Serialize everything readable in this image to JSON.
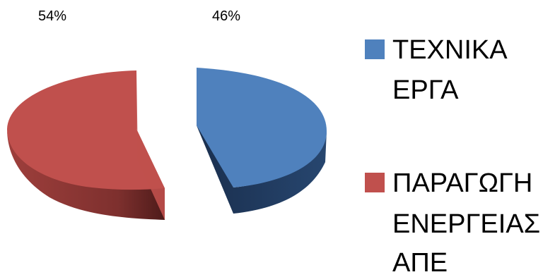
{
  "chart_data": {
    "type": "pie",
    "style": "3d-exploded",
    "legend_position": "right",
    "slices": [
      {
        "label_lines": [
          "ΤΕΧΝΙΚΑ",
          "ΕΡΓΑ"
        ],
        "value": 46,
        "value_label": "46%",
        "color": "#4F81BD",
        "side_color": "#1F3A5E"
      },
      {
        "label_lines": [
          "ΠΑΡΑΓΩΓΗ",
          "ΕΝΕΡΓΕΙΑΣ",
          "ΑΠΕ"
        ],
        "value": 54,
        "value_label": "54%",
        "color": "#C0504D",
        "side_color": "#7A2E2C"
      }
    ]
  }
}
